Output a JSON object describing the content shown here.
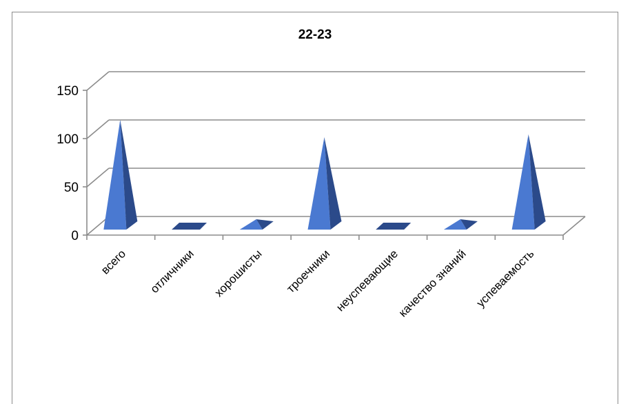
{
  "chart_data": {
    "type": "bar",
    "title": "22-23",
    "categories": [
      "всего",
      "отличники",
      "хорошисты",
      "троечники",
      "неуспевающие",
      "качество знаний",
      "успеваемость"
    ],
    "values": [
      118,
      0,
      15,
      100,
      0,
      15,
      103
    ],
    "yticks": [
      "0",
      "50",
      "100",
      "150"
    ],
    "ylim": [
      0,
      150
    ],
    "grid": true,
    "legend": "none",
    "bar_style": "3d-pyramid",
    "colors": {
      "face": "#4a79d1",
      "side": "#2b4a8a",
      "grid": "#8c8c8c"
    }
  }
}
